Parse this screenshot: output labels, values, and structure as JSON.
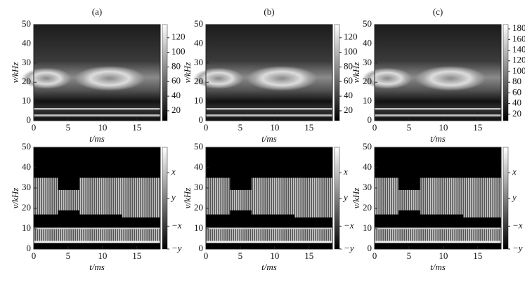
{
  "chart_data": [
    {
      "type": "heatmap",
      "variant": "analysis",
      "title": "(a)",
      "xlabel": "t/ms",
      "ylabel": "v/kHz",
      "xlim": [
        0,
        18.4
      ],
      "xticks": [
        0,
        5,
        10,
        15
      ],
      "ylim": [
        0,
        50
      ],
      "yticks": [
        0,
        10,
        20,
        30,
        40,
        50
      ],
      "clim": [
        6.5,
        138
      ],
      "cticks": [
        20,
        40,
        60,
        80,
        100,
        120
      ]
    },
    {
      "type": "heatmap",
      "variant": "analysis",
      "title": "(b)",
      "xlabel": "t/ms",
      "ylabel": "v/kHz",
      "xlim": [
        0,
        18.4
      ],
      "xticks": [
        0,
        5,
        10,
        15
      ],
      "ylim": [
        0,
        50
      ],
      "yticks": [
        0,
        10,
        20,
        30,
        40,
        50
      ],
      "clim": [
        6.5,
        138
      ],
      "cticks": [
        20,
        40,
        60,
        80,
        100,
        120
      ]
    },
    {
      "type": "heatmap",
      "variant": "analysis",
      "title": "(c)",
      "xlabel": "t/ms",
      "ylabel": "v/kHz",
      "xlim": [
        0,
        18.4
      ],
      "xticks": [
        0,
        5,
        10,
        15
      ],
      "ylim": [
        0,
        50
      ],
      "yticks": [
        0,
        10,
        20,
        30,
        40,
        50
      ],
      "clim": [
        8,
        188
      ],
      "cticks": [
        20,
        40,
        60,
        80,
        100,
        120,
        140,
        160,
        180
      ]
    },
    {
      "type": "heatmap",
      "variant": "symbol",
      "xlabel": "t/ms",
      "ylabel": "v/kHz",
      "xlim": [
        0,
        18.4
      ],
      "xticks": [
        0,
        5,
        10,
        15
      ],
      "ylim": [
        0,
        50
      ],
      "yticks": [
        0,
        10,
        20,
        30,
        40,
        50
      ],
      "clim": [
        -1,
        1
      ],
      "cticks": [
        {
          "value": 0.5,
          "label": "x"
        },
        {
          "value": 0,
          "label": "y"
        },
        {
          "value": -0.55,
          "label": "−x"
        },
        {
          "value": -1,
          "label": "−y"
        }
      ]
    },
    {
      "type": "heatmap",
      "variant": "symbol",
      "xlabel": "t/ms",
      "ylabel": "v/kHz",
      "xlim": [
        0,
        18.4
      ],
      "xticks": [
        0,
        5,
        10,
        15
      ],
      "ylim": [
        0,
        50
      ],
      "yticks": [
        0,
        10,
        20,
        30,
        40,
        50
      ],
      "clim": [
        -1,
        1
      ],
      "cticks": [
        {
          "value": 0.5,
          "label": "x"
        },
        {
          "value": 0,
          "label": "y"
        },
        {
          "value": -0.55,
          "label": "−x"
        },
        {
          "value": -1,
          "label": "−y"
        }
      ]
    },
    {
      "type": "heatmap",
      "variant": "symbol",
      "xlabel": "t/ms",
      "ylabel": "v/kHz",
      "xlim": [
        0,
        18.4
      ],
      "xticks": [
        0,
        5,
        10,
        15
      ],
      "ylim": [
        0,
        50
      ],
      "yticks": [
        0,
        10,
        20,
        30,
        40,
        50
      ],
      "clim": [
        -1,
        1
      ],
      "cticks": [
        {
          "value": 0.5,
          "label": "x"
        },
        {
          "value": 0,
          "label": "y"
        },
        {
          "value": -0.55,
          "label": "−x"
        },
        {
          "value": -1,
          "label": "−y"
        }
      ]
    }
  ]
}
